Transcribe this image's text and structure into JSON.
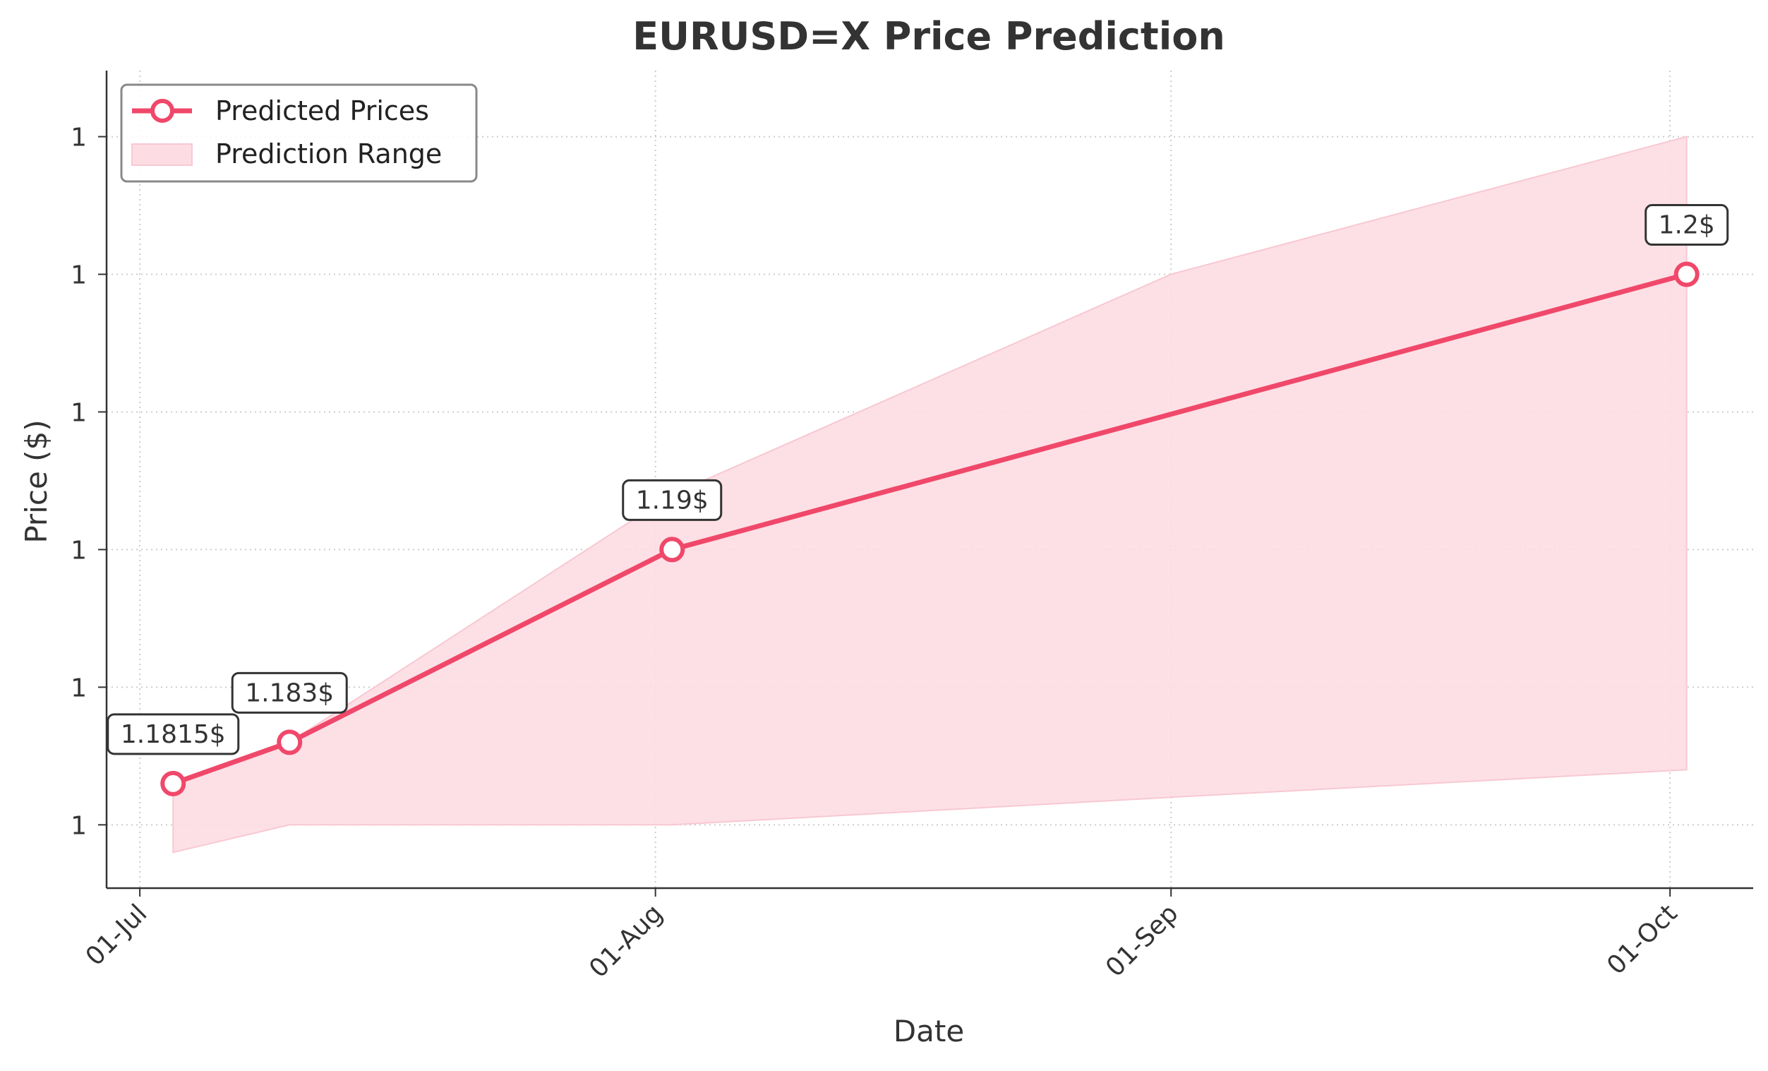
{
  "chart_data": {
    "type": "line",
    "title": "EURUSD=X Price Prediction",
    "xlabel": "Date",
    "ylabel": "Price ($)",
    "x_tick_labels": [
      "01-Jul",
      "01-Aug",
      "01-Sep",
      "01-Oct"
    ],
    "x_tick_dates": [
      "2025-07-01",
      "2025-08-01",
      "2025-09-01",
      "2025-10-01"
    ],
    "y_tick_labels": [
      "1",
      "1",
      "1",
      "1",
      "1",
      "1"
    ],
    "y_tick_values": [
      1.18,
      1.185,
      1.19,
      1.195,
      1.2,
      1.205
    ],
    "xlim": [
      "2025-06-29",
      "2025-10-06"
    ],
    "ylim": [
      1.1777,
      1.2074
    ],
    "grid": true,
    "legend_position": "top-left",
    "legend": [
      {
        "label": "Predicted Prices",
        "kind": "line-marker"
      },
      {
        "label": "Prediction Range",
        "kind": "patch"
      }
    ],
    "series": [
      {
        "name": "Predicted Prices",
        "x": [
          "2025-07-03",
          "2025-07-10",
          "2025-08-02",
          "2025-10-02"
        ],
        "y": [
          1.1815,
          1.183,
          1.19,
          1.2
        ],
        "labels": [
          "1.1815$",
          "1.183$",
          "1.19$",
          "1.2$"
        ],
        "color": "#f0486a"
      }
    ],
    "range": {
      "name": "Prediction Range",
      "x": [
        "2025-07-03",
        "2025-07-10",
        "2025-08-02",
        "2025-09-01",
        "2025-10-02"
      ],
      "lower": [
        1.179,
        1.18,
        1.18,
        1.181,
        1.182
      ],
      "upper": [
        1.1815,
        1.183,
        1.192,
        1.2,
        1.205
      ],
      "color": "#fddde3"
    }
  }
}
